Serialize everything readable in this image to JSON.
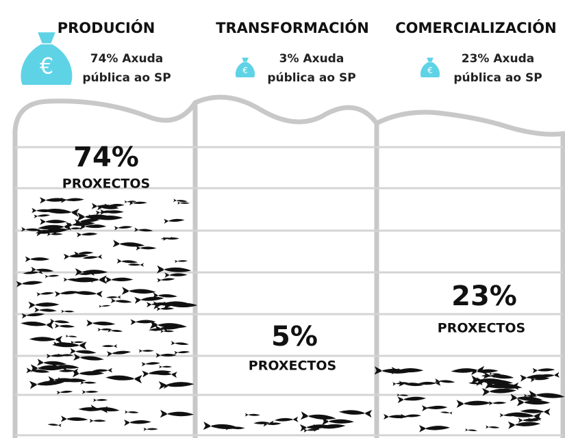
{
  "columns": [
    {
      "title": "PRODUCIÓN",
      "aid_lines": [
        "74% Axuda",
        "pública ao SP"
      ],
      "projects_value": "74%",
      "projects_label": "PROXECTOS"
    },
    {
      "title": "TRANSFORMACIÓN",
      "aid_lines": [
        "3% Axuda",
        "pública ao SP"
      ],
      "projects_value": "5%",
      "projects_label": "PROXECTOS"
    },
    {
      "title": "COMERCIALIZACIÓN",
      "aid_lines": [
        "23% Axuda",
        "pública ao SP"
      ],
      "projects_value": "23%",
      "projects_label": "PROXECTOS"
    }
  ]
}
